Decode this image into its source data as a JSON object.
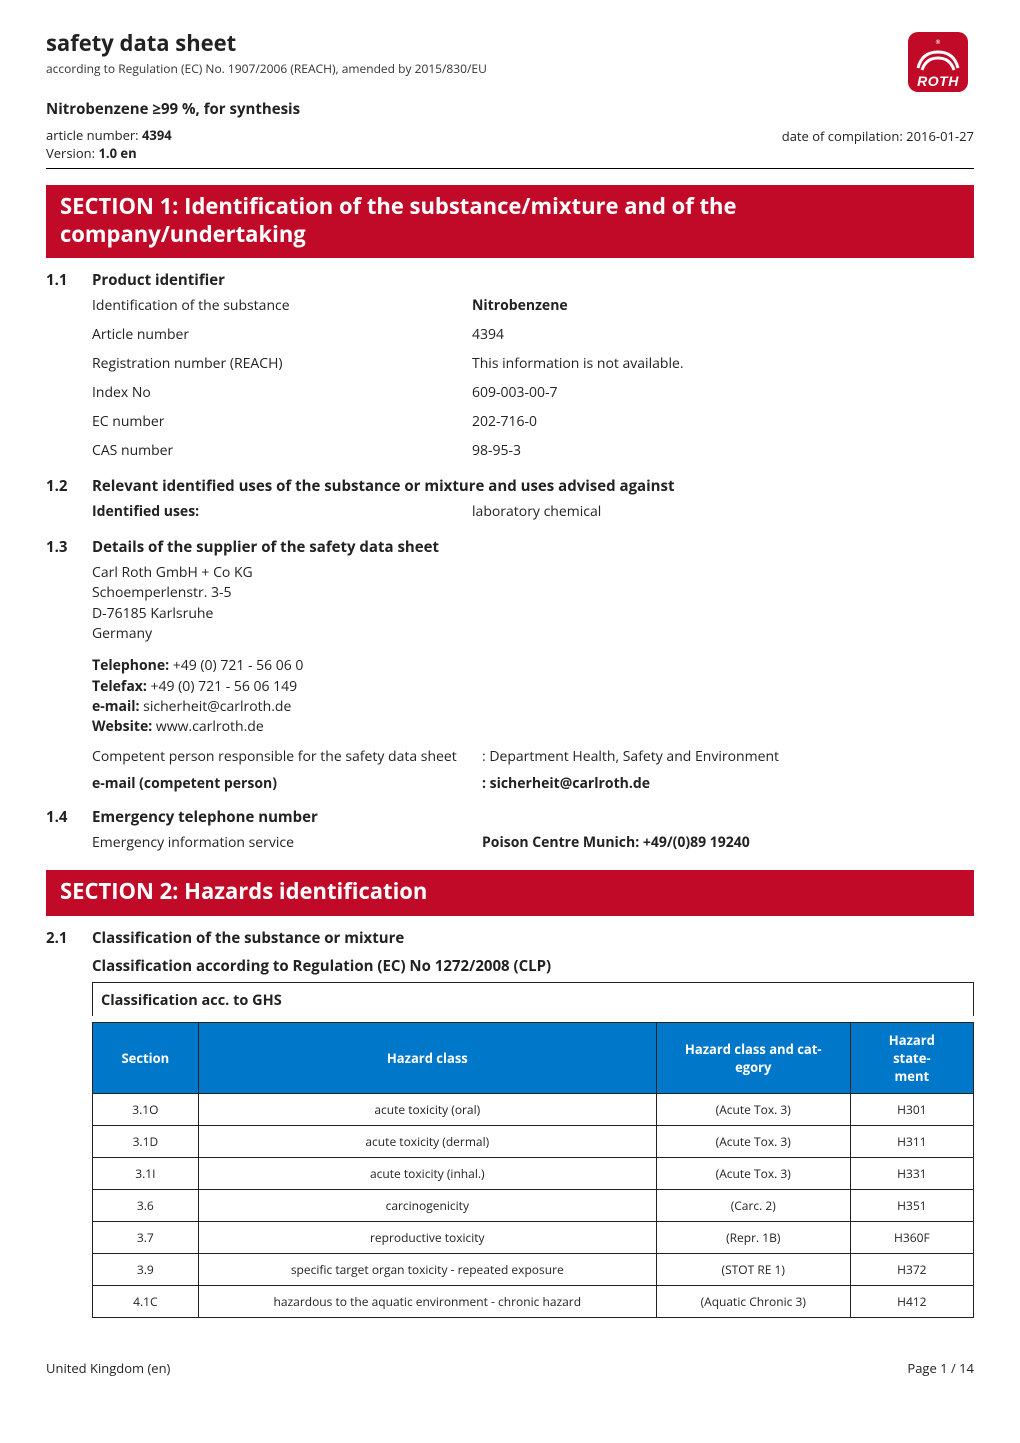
{
  "header": {
    "doc_title": "safety data sheet",
    "doc_subtitle": "according to Regulation (EC) No. 1907/2006 (REACH), amended by 2015/830/EU",
    "product_line": "Nitrobenzene  ≥99 %, for synthesis",
    "article_number_label": "article number:",
    "article_number": "4394",
    "version_label": "Version:",
    "version": "1.0 en",
    "compilation_label": "date of compilation:",
    "compilation_date": "2016-01-27",
    "logo": {
      "bg_color": "#c10a27",
      "text": "ROTH",
      "text_color": "#ffffff"
    }
  },
  "section1": {
    "banner": "SECTION 1: Identification of the substance/mixture and of the company/undertaking",
    "s1_1": {
      "num": "1.1",
      "title": "Product identifier",
      "rows": [
        {
          "k": "Identification of the substance",
          "v": "Nitrobenzene",
          "vbold": true
        },
        {
          "k": "Article number",
          "v": "4394"
        },
        {
          "k": "Registration number (REACH)",
          "v": "This information is not available."
        },
        {
          "k": "Index No",
          "v": "609-003-00-7"
        },
        {
          "k": "EC number",
          "v": "202-716-0"
        },
        {
          "k": "CAS number",
          "v": "98-95-3"
        }
      ]
    },
    "s1_2": {
      "num": "1.2",
      "title": "Relevant identified uses of the substance or mixture and uses advised against",
      "k": "Identified uses:",
      "v": "laboratory chemical"
    },
    "s1_3": {
      "num": "1.3",
      "title": "Details of the supplier of the safety data sheet",
      "address": [
        "Carl Roth GmbH + Co KG",
        "Schoemperlenstr. 3-5",
        "D-76185 Karlsruhe",
        "Germany"
      ],
      "contact": {
        "tel_label": "Telephone:",
        "tel": " +49 (0) 721 - 56 06 0",
        "fax_label": "Telefax:",
        "fax": " +49 (0) 721 - 56 06 149",
        "email_label": "e-mail:",
        "email": " sicherheit@carlroth.de",
        "web_label": "Website:",
        "web": " www.carlroth.de"
      },
      "competent_k": "Competent person responsible for the safety data sheet",
      "competent_v": ": Department Health, Safety and Environment",
      "ecp_k": "e-mail (competent person)",
      "ecp_v": ": sicherheit@carlroth.de"
    },
    "s1_4": {
      "num": "1.4",
      "title": "Emergency telephone number",
      "k": "Emergency information service",
      "v": "Poison Centre Munich:  +49/(0)89 19240"
    }
  },
  "section2": {
    "banner": "SECTION 2: Hazards identification",
    "s2_1": {
      "num": "2.1",
      "title": "Classification of the substance or mixture",
      "subline": "Classification according to Regulation (EC) No 1272/2008 (CLP)",
      "table_title": "Classification acc. to GHS",
      "columns": [
        "Section",
        "Hazard class",
        "Hazard class and category",
        "Hazard statement"
      ],
      "col_widths": [
        "12%",
        "52%",
        "22%",
        "14%"
      ],
      "header_bg": "#0077c8",
      "header_fg": "#ffffff",
      "rows": [
        [
          "3.1O",
          "acute toxicity (oral)",
          "(Acute Tox. 3)",
          "H301"
        ],
        [
          "3.1D",
          "acute toxicity (dermal)",
          "(Acute Tox. 3)",
          "H311"
        ],
        [
          "3.1I",
          "acute toxicity (inhal.)",
          "(Acute Tox. 3)",
          "H331"
        ],
        [
          "3.6",
          "carcinogenicity",
          "(Carc. 2)",
          "H351"
        ],
        [
          "3.7",
          "reproductive toxicity",
          "(Repr. 1B)",
          "H360F"
        ],
        [
          "3.9",
          "specific target organ toxicity - repeated exposure",
          "(STOT RE 1)",
          "H372"
        ],
        [
          "4.1C",
          "hazardous to the aquatic environment - chronic hazard",
          "(Aquatic Chronic 3)",
          "H412"
        ]
      ]
    }
  },
  "footer": {
    "left": "United Kingdom (en)",
    "right": "Page 1 / 14"
  }
}
